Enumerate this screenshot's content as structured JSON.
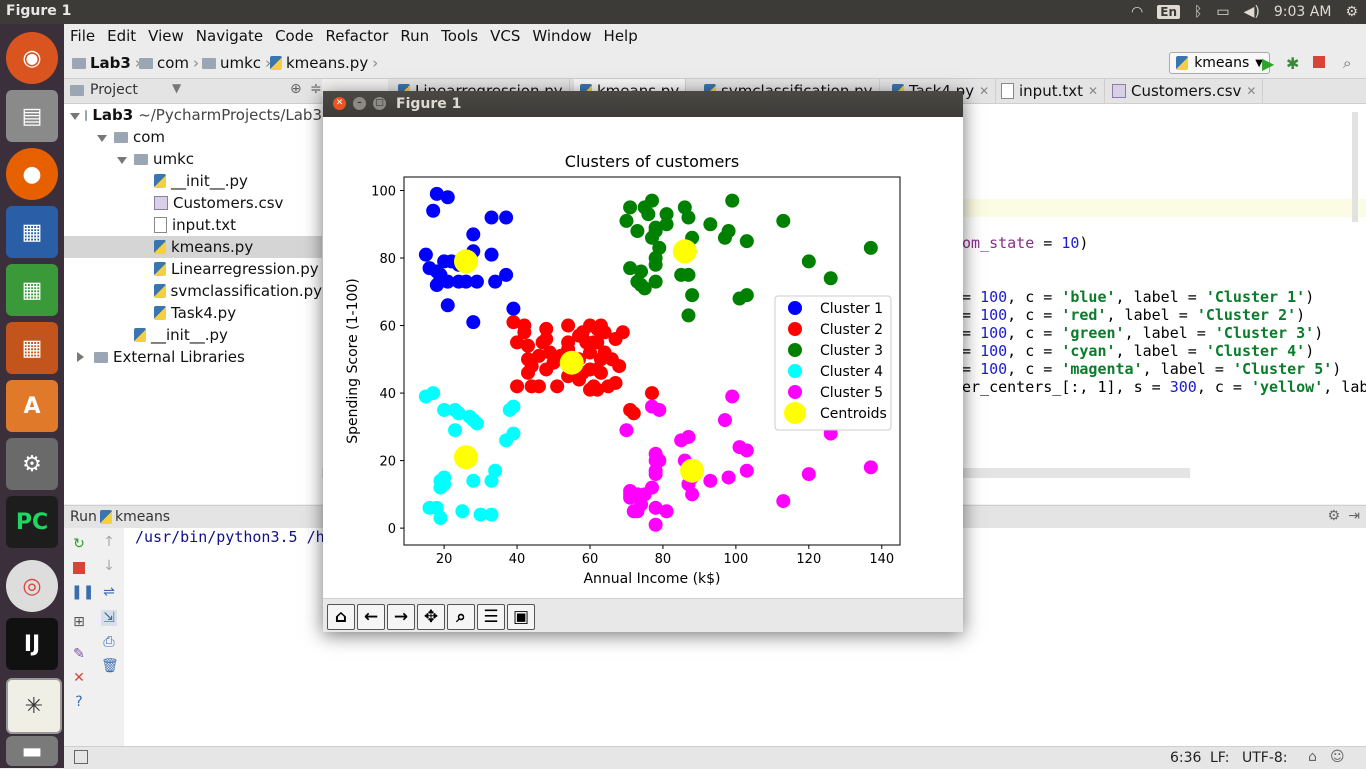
{
  "system": {
    "window_title": "Figure 1",
    "lang": "En",
    "clock": "9:03 AM"
  },
  "menu": [
    "File",
    "Edit",
    "View",
    "Navigate",
    "Code",
    "Refactor",
    "Run",
    "Tools",
    "VCS",
    "Window",
    "Help"
  ],
  "breadcrumb": [
    "Lab3",
    "com",
    "umkc",
    "kmeans.py"
  ],
  "run_config": "kmeans",
  "project_panel": {
    "header": "Project",
    "tree": [
      {
        "label": "Lab3",
        "extra": "~/PycharmProjects/Lab3",
        "type": "folder",
        "depth": 0,
        "expanded": true
      },
      {
        "label": "com",
        "type": "folder",
        "depth": 1,
        "expanded": true
      },
      {
        "label": "umkc",
        "type": "folder",
        "depth": 2,
        "expanded": true
      },
      {
        "label": "__init__.py",
        "type": "py",
        "depth": 3
      },
      {
        "label": "Customers.csv",
        "type": "csv",
        "depth": 3
      },
      {
        "label": "input.txt",
        "type": "txt",
        "depth": 3
      },
      {
        "label": "kmeans.py",
        "type": "py",
        "depth": 3,
        "selected": true
      },
      {
        "label": "Linearregression.py",
        "type": "py",
        "depth": 3
      },
      {
        "label": "svmclassification.py",
        "type": "py",
        "depth": 3
      },
      {
        "label": "Task4.py",
        "type": "py",
        "depth": 3
      },
      {
        "label": "__init__.py",
        "type": "py",
        "depth": 2
      },
      {
        "label": "External Libraries",
        "type": "lib",
        "depth": 0,
        "expanded": false
      }
    ]
  },
  "editor_tabs": [
    "Linearregression.py",
    "kmeans.py",
    "svmclassification.py",
    "Task4.py",
    "input.txt",
    "Customers.csv"
  ],
  "code_lines": [
    {
      "parts": [
        [
          "om_state",
          "var"
        ],
        [
          " = ",
          "plain"
        ],
        [
          "10",
          "num"
        ],
        [
          ")",
          "plain"
        ]
      ]
    },
    {
      "parts": [
        [
          "= ",
          "plain"
        ],
        [
          "100",
          "num"
        ],
        [
          ", c = ",
          "plain"
        ],
        [
          "'blue'",
          "str"
        ],
        [
          ", label = ",
          "plain"
        ],
        [
          "'Cluster 1'",
          "str"
        ],
        [
          ")",
          "plain"
        ]
      ]
    },
    {
      "parts": [
        [
          "= ",
          "plain"
        ],
        [
          "100",
          "num"
        ],
        [
          ", c = ",
          "plain"
        ],
        [
          "'red'",
          "str"
        ],
        [
          ", label = ",
          "plain"
        ],
        [
          "'Cluster 2'",
          "str"
        ],
        [
          ")",
          "plain"
        ]
      ]
    },
    {
      "parts": [
        [
          "= ",
          "plain"
        ],
        [
          "100",
          "num"
        ],
        [
          ", c = ",
          "plain"
        ],
        [
          "'green'",
          "str"
        ],
        [
          ", label = ",
          "plain"
        ],
        [
          "'Cluster 3'",
          "str"
        ],
        [
          ")",
          "plain"
        ]
      ]
    },
    {
      "parts": [
        [
          "= ",
          "plain"
        ],
        [
          "100",
          "num"
        ],
        [
          ", c = ",
          "plain"
        ],
        [
          "'cyan'",
          "str"
        ],
        [
          ", label = ",
          "plain"
        ],
        [
          "'Cluster 4'",
          "str"
        ],
        [
          ")",
          "plain"
        ]
      ]
    },
    {
      "parts": [
        [
          "= ",
          "plain"
        ],
        [
          "100",
          "num"
        ],
        [
          ", c = ",
          "plain"
        ],
        [
          "'magenta'",
          "str"
        ],
        [
          ", label = ",
          "plain"
        ],
        [
          "'Cluster 5'",
          "str"
        ],
        [
          ")",
          "plain"
        ]
      ]
    },
    {
      "parts": [
        [
          "er_centers_[:, 1], s = ",
          "plain"
        ],
        [
          "300",
          "num"
        ],
        [
          ", c = ",
          "plain"
        ],
        [
          "'yellow'",
          "str"
        ],
        [
          ", labe",
          "plain"
        ]
      ]
    }
  ],
  "run_panel": {
    "label": "Run",
    "config": "kmeans",
    "console_line": "/usr/bin/python3.5 /h"
  },
  "status": {
    "pos": "6:36",
    "line_sep": "LF:",
    "encoding": "UTF-8:"
  },
  "figure": {
    "window_title": "Figure 1"
  },
  "chart_data": {
    "type": "scatter",
    "title": "Clusters of customers",
    "xlabel": "Annual Income (k$)",
    "ylabel": "Spending Score (1-100)",
    "xlim": [
      9,
      145
    ],
    "ylim": [
      -5,
      104
    ],
    "xticks": [
      20,
      40,
      60,
      80,
      100,
      120,
      140
    ],
    "yticks": [
      0,
      20,
      40,
      60,
      80,
      100
    ],
    "legend_position": "center-right",
    "series": [
      {
        "name": "Cluster 1",
        "color": "#0000ff",
        "points": [
          [
            18,
            99
          ],
          [
            21,
            98
          ],
          [
            17,
            94
          ],
          [
            33,
            92
          ],
          [
            37,
            92
          ],
          [
            15,
            81
          ],
          [
            16,
            77
          ],
          [
            18,
            76
          ],
          [
            19,
            74
          ],
          [
            20,
            79
          ],
          [
            21,
            73
          ],
          [
            24,
            73
          ],
          [
            26,
            73
          ],
          [
            28,
            82
          ],
          [
            28,
            87
          ],
          [
            29,
            73
          ],
          [
            33,
            81
          ],
          [
            34,
            73
          ],
          [
            37,
            75
          ],
          [
            18,
            72
          ],
          [
            21,
            66
          ],
          [
            22,
            79
          ],
          [
            24,
            78
          ],
          [
            39,
            65
          ],
          [
            28,
            61
          ],
          [
            19,
            75
          ]
        ]
      },
      {
        "name": "Cluster 2",
        "color": "#ff0000",
        "points": [
          [
            39,
            61
          ],
          [
            40,
            55
          ],
          [
            42,
            60
          ],
          [
            43,
            50
          ],
          [
            43,
            46
          ],
          [
            44,
            42
          ],
          [
            46,
            51
          ],
          [
            47,
            55
          ],
          [
            48,
            47
          ],
          [
            48,
            56
          ],
          [
            49,
            52
          ],
          [
            50,
            49
          ],
          [
            54,
            55
          ],
          [
            54,
            48
          ],
          [
            54,
            53
          ],
          [
            54,
            45
          ],
          [
            57,
            57
          ],
          [
            57,
            50
          ],
          [
            57,
            44
          ],
          [
            58,
            46
          ],
          [
            59,
            55
          ],
          [
            60,
            41
          ],
          [
            60,
            60
          ],
          [
            60,
            52
          ],
          [
            61,
            42
          ],
          [
            62,
            59
          ],
          [
            62,
            55
          ],
          [
            63,
            50
          ],
          [
            63,
            46
          ],
          [
            64,
            52
          ],
          [
            64,
            58
          ],
          [
            65,
            42
          ],
          [
            67,
            56
          ],
          [
            68,
            48
          ],
          [
            67,
            43
          ],
          [
            69,
            58
          ],
          [
            63,
            60
          ],
          [
            62,
            41
          ],
          [
            40,
            42
          ],
          [
            46,
            42
          ],
          [
            48,
            59
          ],
          [
            51,
            42
          ],
          [
            52,
            51
          ],
          [
            58,
            58
          ],
          [
            71,
            35
          ],
          [
            72,
            34
          ],
          [
            77,
            40
          ],
          [
            43,
            54
          ],
          [
            66,
            50
          ],
          [
            54,
            60
          ],
          [
            60,
            47
          ],
          [
            62,
            47
          ],
          [
            42,
            58
          ],
          [
            44,
            48
          ],
          [
            61,
            55
          ]
        ]
      },
      {
        "name": "Cluster 3",
        "color": "#008000",
        "points": [
          [
            70,
            91
          ],
          [
            71,
            77
          ],
          [
            71,
            95
          ],
          [
            73,
            88
          ],
          [
            73,
            73
          ],
          [
            74,
            72
          ],
          [
            75,
            95
          ],
          [
            76,
            93
          ],
          [
            77,
            97
          ],
          [
            78,
            88
          ],
          [
            78,
            78
          ],
          [
            78,
            89
          ],
          [
            78,
            73
          ],
          [
            79,
            83
          ],
          [
            81,
            93
          ],
          [
            81,
            90
          ],
          [
            85,
            75
          ],
          [
            86,
            95
          ],
          [
            87,
            63
          ],
          [
            87,
            75
          ],
          [
            87,
            92
          ],
          [
            88,
            86
          ],
          [
            88,
            69
          ],
          [
            93,
            90
          ],
          [
            97,
            86
          ],
          [
            98,
            88
          ],
          [
            99,
            97
          ],
          [
            101,
            68
          ],
          [
            103,
            85
          ],
          [
            103,
            69
          ],
          [
            113,
            91
          ],
          [
            120,
            79
          ],
          [
            126,
            74
          ],
          [
            137,
            83
          ],
          [
            74,
            76
          ],
          [
            75,
            71
          ],
          [
            77,
            86
          ],
          [
            78,
            80
          ]
        ]
      },
      {
        "name": "Cluster 4",
        "color": "#00ffff",
        "points": [
          [
            15,
            39
          ],
          [
            16,
            6
          ],
          [
            17,
            40
          ],
          [
            18,
            6
          ],
          [
            19,
            3
          ],
          [
            19,
            14
          ],
          [
            20,
            15
          ],
          [
            20,
            13
          ],
          [
            20,
            35
          ],
          [
            23,
            29
          ],
          [
            23,
            35
          ],
          [
            24,
            34
          ],
          [
            25,
            5
          ],
          [
            28,
            14
          ],
          [
            28,
            32
          ],
          [
            29,
            31
          ],
          [
            30,
            4
          ],
          [
            33,
            4
          ],
          [
            33,
            14
          ],
          [
            34,
            17
          ],
          [
            37,
            26
          ],
          [
            38,
            35
          ],
          [
            39,
            28
          ],
          [
            39,
            36
          ],
          [
            19,
            12
          ],
          [
            27,
            33
          ]
        ]
      },
      {
        "name": "Cluster 5",
        "color": "#ff00ff",
        "points": [
          [
            70,
            29
          ],
          [
            71,
            11
          ],
          [
            71,
            9
          ],
          [
            72,
            5
          ],
          [
            73,
            5
          ],
          [
            73,
            10
          ],
          [
            74,
            7
          ],
          [
            75,
            10
          ],
          [
            77,
            12
          ],
          [
            77,
            36
          ],
          [
            78,
            1
          ],
          [
            78,
            16
          ],
          [
            78,
            20
          ],
          [
            78,
            22
          ],
          [
            78,
            17
          ],
          [
            78,
            6
          ],
          [
            79,
            35
          ],
          [
            81,
            5
          ],
          [
            85,
            26
          ],
          [
            86,
            20
          ],
          [
            87,
            27
          ],
          [
            87,
            13
          ],
          [
            88,
            10
          ],
          [
            88,
            15
          ],
          [
            93,
            14
          ],
          [
            97,
            32
          ],
          [
            98,
            15
          ],
          [
            99,
            39
          ],
          [
            101,
            24
          ],
          [
            103,
            23
          ],
          [
            103,
            17
          ],
          [
            113,
            8
          ],
          [
            120,
            16
          ],
          [
            126,
            28
          ],
          [
            137,
            18
          ],
          [
            71,
            10
          ],
          [
            79,
            20
          ]
        ]
      },
      {
        "name": "Centroids",
        "color": "#ffff00",
        "points": [
          [
            26,
            79
          ],
          [
            55,
            49
          ],
          [
            86,
            82
          ],
          [
            26,
            21
          ],
          [
            88,
            17
          ]
        ]
      }
    ]
  }
}
